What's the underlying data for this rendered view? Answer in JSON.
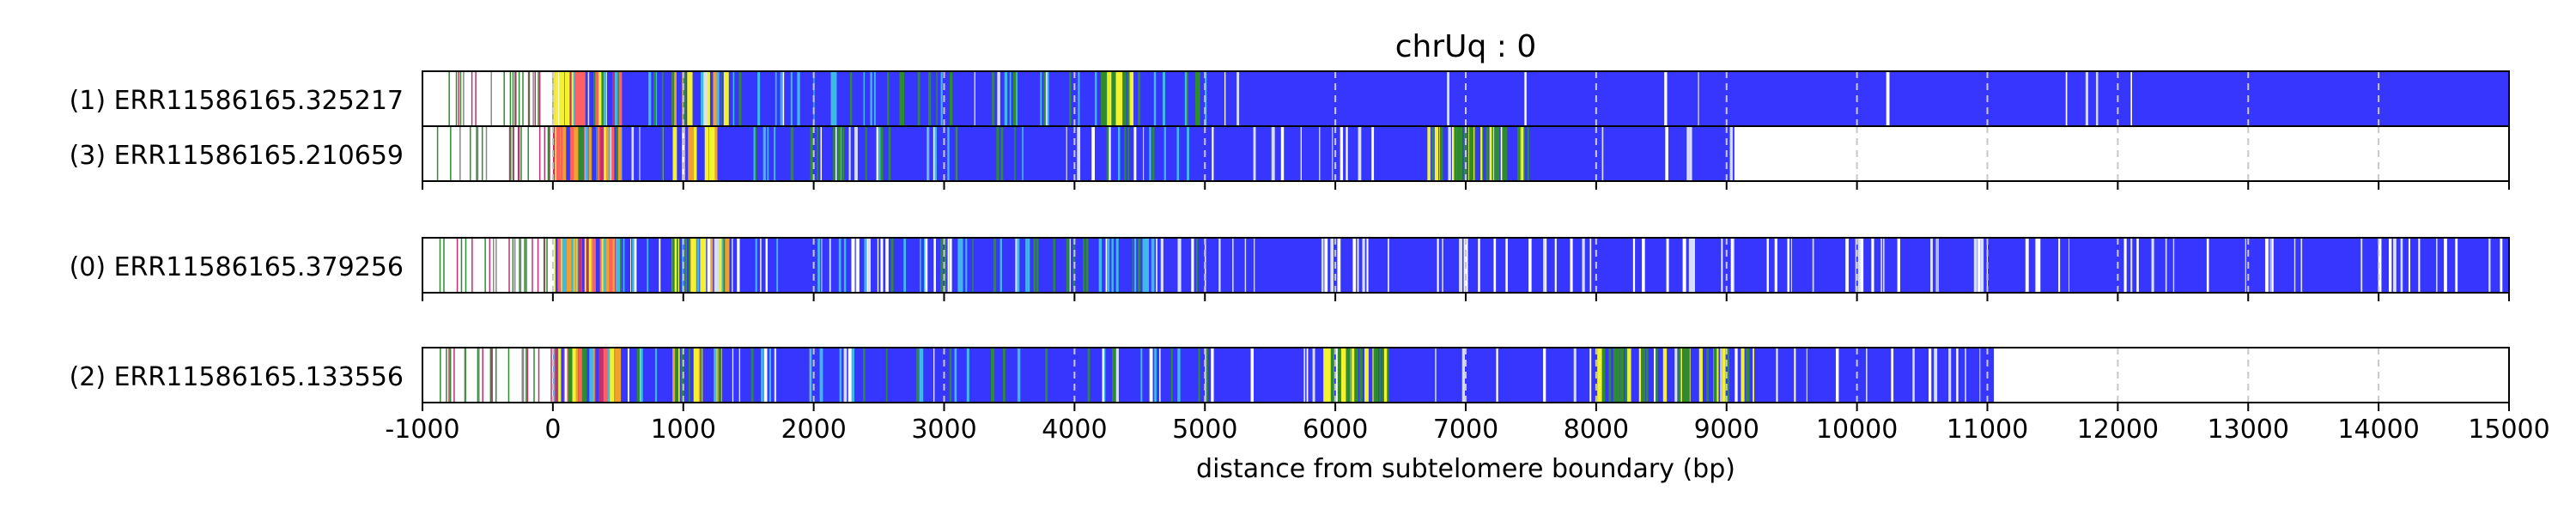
{
  "chart_data": {
    "type": "bar",
    "title": "chrUq : 0",
    "xlabel": "distance from subtelomere boundary (bp)",
    "ylabel": "",
    "xlim": [
      -1000,
      15000
    ],
    "xticks": [
      -1000,
      0,
      1000,
      2000,
      3000,
      4000,
      5000,
      6000,
      7000,
      8000,
      9000,
      10000,
      11000,
      12000,
      13000,
      14000,
      15000
    ],
    "grid": "vertical dashed at each 1000",
    "colors": {
      "repeat": "#3636ff",
      "green": "#2e8b2e",
      "yellow": "#f2f230",
      "orange": "#f0a030",
      "magenta": "#c03070",
      "cyan": "#40b8e8",
      "light": "#d8e0f8",
      "grid": "#c8c8c8"
    },
    "groups": [
      {
        "reads": [
          {
            "label": "(1) ERR11586165.325217",
            "start": -1000,
            "end": 15000,
            "blue_start": 530,
            "green_cluster": [
              4200,
              4450
            ],
            "white_density": 0.2
          },
          {
            "label": "(3) ERR11586165.210659",
            "start": -1000,
            "end": 9060,
            "blue_start": 530,
            "green_cluster": [
              6700,
              7500
            ],
            "white_density": 0.9
          }
        ]
      },
      {
        "reads": [
          {
            "label": "(0) ERR11586165.379256",
            "start": -1000,
            "end": 15000,
            "blue_start": 530,
            "green_cluster": null,
            "white_density": 1.5
          }
        ]
      },
      {
        "reads": [
          {
            "label": "(2) ERR11586165.133556",
            "start": -1000,
            "end": 11050,
            "blue_start": 530,
            "green_cluster": [
              5900,
              6400
            ],
            "green_cluster2": [
              8000,
              9200
            ],
            "white_density": 0.8
          }
        ]
      }
    ]
  }
}
